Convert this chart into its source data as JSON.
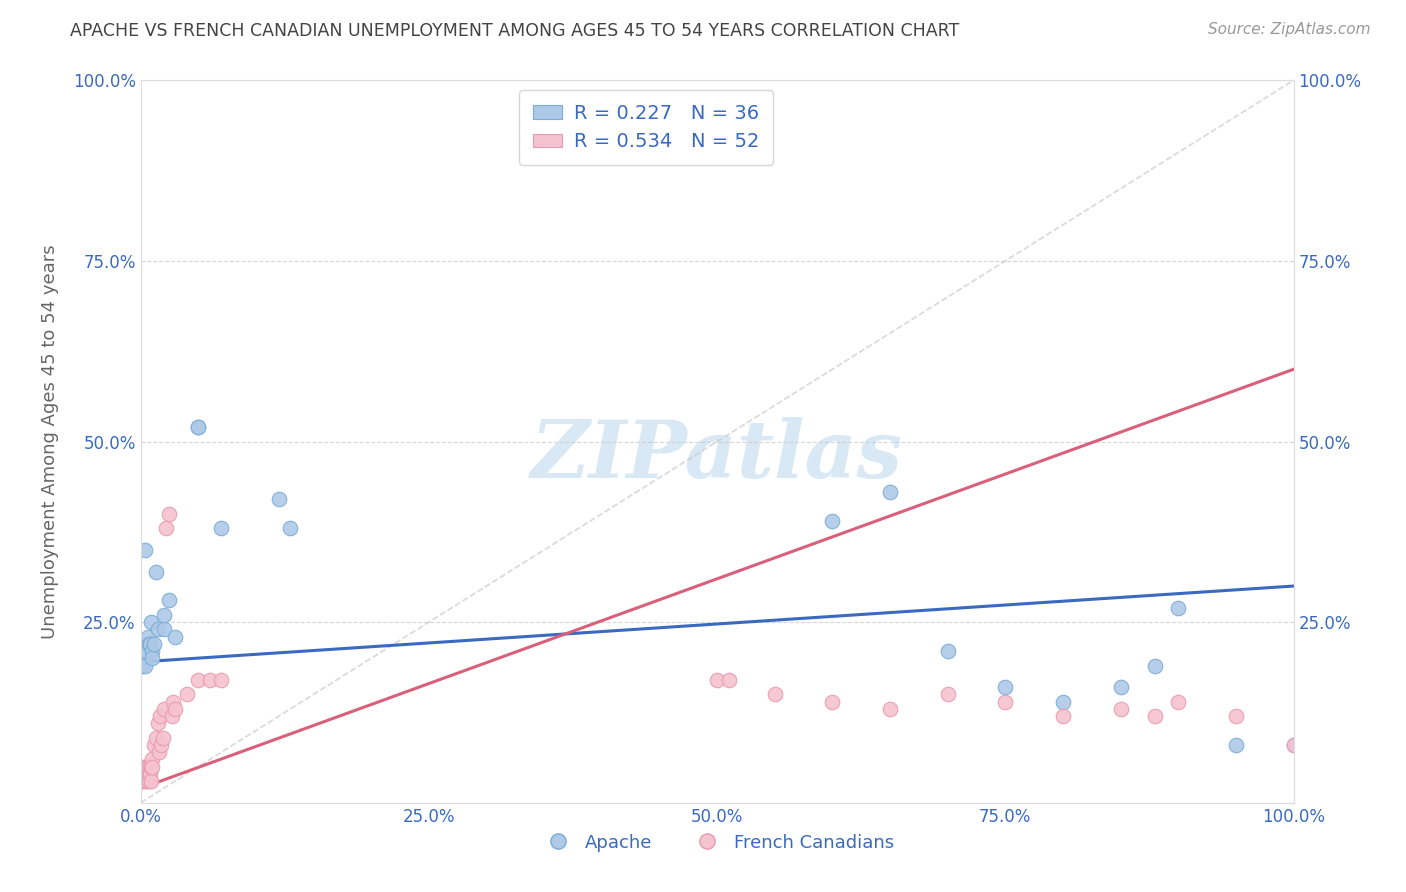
{
  "title": "APACHE VS FRENCH CANADIAN UNEMPLOYMENT AMONG AGES 45 TO 54 YEARS CORRELATION CHART",
  "source": "Source: ZipAtlas.com",
  "ylabel": "Unemployment Among Ages 45 to 54 years",
  "apache_R": 0.227,
  "apache_N": 36,
  "french_R": 0.534,
  "french_N": 52,
  "apache_color": "#aec9e8",
  "apache_edge": "#7aadd4",
  "french_color": "#f5c2d0",
  "french_edge": "#e89ab0",
  "trendline_apache": "#3a6abf",
  "trendline_french": "#d9607a",
  "diagonal_color": "#c8c8c8",
  "watermark_text": "ZIPatlas",
  "watermark_color": "#d8e8f4",
  "legend_text_color": "#3a6abf",
  "title_color": "#444444",
  "background_color": "#ffffff",
  "grid_color": "#cccccc",
  "axis_label_color": "#666666",
  "tick_label_color": "#3a6abf",
  "apache_trendline_x0": 0.0,
  "apache_trendline_y0": 0.195,
  "apache_trendline_x1": 1.0,
  "apache_trendline_y1": 0.3,
  "french_trendline_x0": 0.0,
  "french_trendline_y0": 0.02,
  "french_trendline_x1": 1.0,
  "french_trendline_y1": 0.6,
  "apache_x": [
    0.001,
    0.001,
    0.002,
    0.003,
    0.004,
    0.004,
    0.005,
    0.005,
    0.006,
    0.007,
    0.008,
    0.009,
    0.01,
    0.01,
    0.012,
    0.013,
    0.015,
    0.02,
    0.02,
    0.025,
    0.03,
    0.05,
    0.05,
    0.07,
    0.12,
    0.13,
    0.6,
    0.65,
    0.7,
    0.75,
    0.8,
    0.85,
    0.88,
    0.9,
    0.95,
    1.0
  ],
  "apache_y": [
    0.19,
    0.2,
    0.21,
    0.2,
    0.35,
    0.19,
    0.22,
    0.21,
    0.23,
    0.22,
    0.22,
    0.25,
    0.21,
    0.2,
    0.22,
    0.32,
    0.24,
    0.24,
    0.26,
    0.28,
    0.23,
    0.52,
    0.52,
    0.38,
    0.42,
    0.38,
    0.39,
    0.43,
    0.21,
    0.16,
    0.14,
    0.16,
    0.19,
    0.27,
    0.08,
    0.08
  ],
  "french_x": [
    0.0,
    0.0,
    0.001,
    0.001,
    0.002,
    0.002,
    0.003,
    0.003,
    0.004,
    0.004,
    0.005,
    0.005,
    0.006,
    0.006,
    0.007,
    0.007,
    0.008,
    0.008,
    0.009,
    0.009,
    0.01,
    0.01,
    0.012,
    0.013,
    0.015,
    0.016,
    0.017,
    0.018,
    0.019,
    0.02,
    0.022,
    0.025,
    0.027,
    0.028,
    0.03,
    0.04,
    0.05,
    0.06,
    0.07,
    0.5,
    0.51,
    0.55,
    0.6,
    0.65,
    0.7,
    0.75,
    0.8,
    0.85,
    0.88,
    0.9,
    0.95,
    1.0
  ],
  "french_y": [
    0.03,
    0.04,
    0.03,
    0.04,
    0.04,
    0.05,
    0.03,
    0.04,
    0.04,
    0.05,
    0.03,
    0.04,
    0.04,
    0.05,
    0.04,
    0.03,
    0.05,
    0.04,
    0.03,
    0.05,
    0.06,
    0.05,
    0.08,
    0.09,
    0.11,
    0.07,
    0.12,
    0.08,
    0.09,
    0.13,
    0.38,
    0.4,
    0.12,
    0.14,
    0.13,
    0.15,
    0.17,
    0.17,
    0.17,
    0.17,
    0.17,
    0.15,
    0.14,
    0.13,
    0.15,
    0.14,
    0.12,
    0.13,
    0.12,
    0.14,
    0.12,
    0.08
  ],
  "xlim": [
    0.0,
    1.0
  ],
  "ylim": [
    0.0,
    1.0
  ],
  "xticks": [
    0.0,
    0.25,
    0.5,
    0.75,
    1.0
  ],
  "xtick_labels": [
    "0.0%",
    "25.0%",
    "50.0%",
    "75.0%",
    "100.0%"
  ],
  "yticks": [
    0.25,
    0.5,
    0.75,
    1.0
  ],
  "ytick_labels": [
    "25.0%",
    "50.0%",
    "75.0%",
    "100.0%"
  ]
}
